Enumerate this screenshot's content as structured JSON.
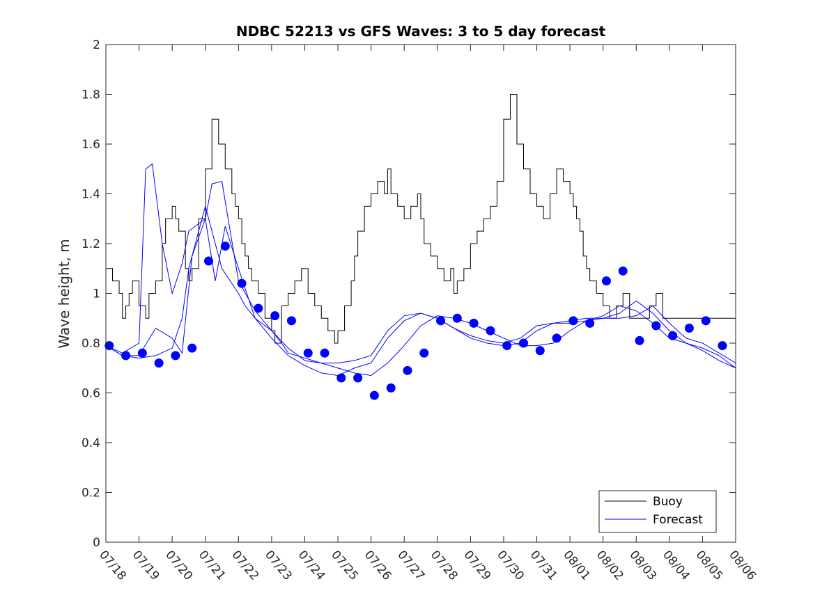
{
  "chart_data": {
    "type": "line",
    "title": "NDBC 52213 vs GFS Waves: 3 to 5 day forecast",
    "xlabel": "",
    "ylabel": "Wave height, m",
    "ylim": [
      0,
      2
    ],
    "xlim": [
      0,
      19
    ],
    "y_ticks": [
      "0",
      "0.2",
      "0.4",
      "0.6",
      "0.8",
      "1",
      "1.2",
      "1.4",
      "1.6",
      "1.8",
      "2"
    ],
    "x_ticks": [
      "07/18",
      "07/19",
      "07/20",
      "07/21",
      "07/22",
      "07/23",
      "07/24",
      "07/25",
      "07/26",
      "07/27",
      "07/28",
      "07/29",
      "07/30",
      "07/31",
      "08/01",
      "08/02",
      "08/03",
      "08/04",
      "08/05",
      "08/06"
    ],
    "x_units": "days since 07/18 00:00",
    "legend": {
      "position": "bottom-right",
      "entries": [
        {
          "label": "Buoy",
          "color": "#000000"
        },
        {
          "label": "Forecast",
          "color": "#0000ff"
        }
      ]
    },
    "colors": {
      "buoy": "#000000",
      "forecast": "#0000ff"
    },
    "series": [
      {
        "name": "Buoy",
        "x": [
          0.0,
          0.2,
          0.4,
          0.5,
          0.6,
          0.7,
          0.8,
          1.0,
          1.2,
          1.3,
          1.5,
          1.7,
          1.8,
          2.0,
          2.1,
          2.2,
          2.4,
          2.5,
          2.6,
          2.8,
          3.0,
          3.2,
          3.4,
          3.6,
          3.8,
          3.9,
          4.0,
          4.1,
          4.2,
          4.3,
          4.4,
          4.6,
          4.8,
          5.0,
          5.1,
          5.3,
          5.5,
          5.7,
          5.9,
          6.1,
          6.3,
          6.5,
          6.7,
          6.9,
          7.0,
          7.2,
          7.4,
          7.5,
          7.6,
          7.8,
          8.0,
          8.2,
          8.4,
          8.5,
          8.6,
          8.8,
          9.0,
          9.2,
          9.4,
          9.5,
          9.6,
          9.8,
          10.0,
          10.2,
          10.4,
          10.5,
          10.6,
          10.8,
          11.0,
          11.2,
          11.4,
          11.6,
          11.8,
          12.0,
          12.2,
          12.4,
          12.6,
          12.8,
          13.0,
          13.2,
          13.4,
          13.6,
          13.8,
          14.0,
          14.1,
          14.2,
          14.3,
          14.4,
          14.5,
          14.6,
          14.8,
          15.0,
          15.2,
          15.4,
          15.6,
          15.8,
          16.0,
          16.2,
          16.4,
          16.6,
          16.8,
          17.0,
          17.2,
          17.4,
          17.6,
          17.8,
          18.0,
          18.2,
          18.4,
          18.6,
          18.8,
          19.0
        ],
        "values": [
          1.1,
          1.05,
          1.0,
          0.9,
          0.95,
          1.0,
          1.05,
          0.95,
          0.9,
          1.0,
          1.05,
          1.2,
          1.3,
          1.35,
          1.3,
          1.25,
          1.1,
          1.05,
          1.1,
          1.3,
          1.5,
          1.7,
          1.6,
          1.5,
          1.4,
          1.35,
          1.3,
          1.2,
          1.15,
          1.1,
          1.05,
          1.0,
          0.9,
          0.85,
          0.8,
          0.95,
          1.0,
          1.05,
          1.1,
          1.0,
          0.95,
          0.9,
          0.85,
          0.8,
          0.85,
          0.95,
          1.05,
          1.15,
          1.25,
          1.35,
          1.4,
          1.45,
          1.4,
          1.5,
          1.4,
          1.35,
          1.3,
          1.35,
          1.4,
          1.3,
          1.2,
          1.15,
          1.1,
          1.05,
          1.1,
          1.0,
          1.05,
          1.1,
          1.2,
          1.25,
          1.3,
          1.35,
          1.45,
          1.7,
          1.8,
          1.6,
          1.5,
          1.4,
          1.35,
          1.3,
          1.4,
          1.5,
          1.45,
          1.4,
          1.35,
          1.3,
          1.25,
          1.15,
          1.1,
          1.05,
          1.0,
          0.95,
          0.9,
          0.95,
          1.0,
          0.9,
          0.9,
          0.9,
          0.95,
          1.0,
          0.9,
          0.9,
          0.9,
          0.9,
          0.9,
          0.9,
          0.9,
          0.9,
          0.9,
          0.9,
          0.9,
          0.9
        ]
      },
      {
        "name": "Forecast",
        "x": [
          0.0,
          0.5,
          1.0,
          1.5,
          2.0,
          2.3,
          2.5,
          3.0,
          3.3,
          3.5,
          4.0,
          4.2,
          4.5,
          5.0,
          5.3,
          5.5,
          6.0,
          6.5,
          7.0,
          7.5,
          8.0,
          8.5,
          9.0,
          9.5,
          10.0,
          10.5,
          11.0,
          11.5,
          12.0,
          12.5,
          13.0,
          13.5,
          14.0,
          14.5,
          15.0,
          15.5,
          16.0,
          16.5,
          17.0,
          17.5,
          18.0,
          18.5,
          19.0
        ],
        "values": [
          0.79,
          0.75,
          0.74,
          0.75,
          0.78,
          0.9,
          1.1,
          1.35,
          1.2,
          1.1,
          1.0,
          0.95,
          0.9,
          0.85,
          0.8,
          0.76,
          0.74,
          0.72,
          0.7,
          0.68,
          0.67,
          0.72,
          0.79,
          0.87,
          0.91,
          0.9,
          0.88,
          0.85,
          0.82,
          0.79,
          0.79,
          0.8,
          0.85,
          0.89,
          0.9,
          0.9,
          0.91,
          0.95,
          0.88,
          0.82,
          0.8,
          0.76,
          0.72
        ]
      },
      {
        "name": "Forecast",
        "x": [
          0.0,
          0.5,
          1.0,
          1.2,
          1.4,
          1.7,
          2.0,
          2.3,
          2.5,
          3.0,
          3.2,
          3.5,
          4.0,
          4.5,
          5.0,
          5.5,
          6.0,
          6.5,
          7.0,
          7.5,
          8.0,
          8.5,
          9.0,
          9.5,
          10.0,
          10.5,
          11.0,
          11.5,
          12.0,
          12.5,
          13.0,
          13.5,
          14.0,
          14.5,
          15.0,
          15.5,
          16.0,
          16.5,
          17.0,
          17.5,
          18.0,
          18.5,
          19.0
        ],
        "values": [
          0.79,
          0.76,
          0.8,
          1.5,
          1.52,
          1.2,
          1.0,
          1.12,
          1.25,
          1.3,
          1.44,
          1.45,
          1.05,
          0.93,
          0.85,
          0.78,
          0.73,
          0.72,
          0.72,
          0.73,
          0.75,
          0.85,
          0.91,
          0.92,
          0.9,
          0.86,
          0.82,
          0.8,
          0.79,
          0.8,
          0.85,
          0.88,
          0.89,
          0.9,
          0.9,
          0.92,
          0.97,
          0.92,
          0.85,
          0.8,
          0.77,
          0.73,
          0.7
        ]
      },
      {
        "name": "Forecast",
        "x": [
          0.0,
          0.5,
          1.0,
          1.5,
          2.0,
          2.3,
          2.6,
          3.0,
          3.3,
          3.6,
          4.0,
          4.5,
          5.0,
          5.5,
          6.0,
          6.5,
          7.0,
          7.5,
          8.0,
          8.5,
          9.0,
          9.5,
          10.0,
          10.5,
          11.0,
          11.5,
          12.0,
          12.5,
          13.0,
          13.5,
          14.0,
          14.5,
          15.0,
          15.5,
          16.0,
          16.5,
          17.0,
          17.5,
          18.0,
          18.5,
          19.0
        ],
        "values": [
          0.79,
          0.75,
          0.75,
          0.86,
          0.82,
          0.76,
          1.15,
          1.3,
          1.05,
          1.27,
          1.1,
          0.9,
          0.82,
          0.75,
          0.71,
          0.68,
          0.67,
          0.7,
          0.72,
          0.82,
          0.89,
          0.92,
          0.9,
          0.86,
          0.83,
          0.81,
          0.8,
          0.82,
          0.87,
          0.88,
          0.88,
          0.89,
          0.91,
          0.95,
          0.93,
          0.88,
          0.82,
          0.8,
          0.78,
          0.75,
          0.7
        ]
      },
      {
        "name": "Forecast",
        "points": true,
        "x": [
          0.1,
          0.6,
          1.1,
          1.6,
          2.1,
          2.6,
          3.1,
          3.6,
          4.1,
          4.6,
          5.1,
          5.6,
          6.1,
          6.6,
          7.1,
          7.6,
          8.1,
          8.6,
          9.1,
          9.6,
          10.1,
          10.6,
          11.1,
          11.6,
          12.1,
          12.6,
          13.1,
          13.6,
          14.1,
          14.6,
          15.1,
          15.6,
          16.1,
          16.6,
          17.1,
          17.6,
          18.1,
          18.6
        ],
        "values": [
          0.79,
          0.75,
          0.76,
          0.72,
          0.75,
          0.78,
          1.13,
          1.19,
          1.04,
          0.94,
          0.91,
          0.89,
          0.76,
          0.76,
          0.66,
          0.66,
          0.59,
          0.62,
          0.69,
          0.76,
          0.89,
          0.9,
          0.88,
          0.85,
          0.79,
          0.8,
          0.77,
          0.82,
          0.89,
          0.88,
          1.05,
          1.09,
          0.81,
          0.87,
          0.83,
          0.86,
          0.89,
          0.79
        ]
      }
    ]
  }
}
